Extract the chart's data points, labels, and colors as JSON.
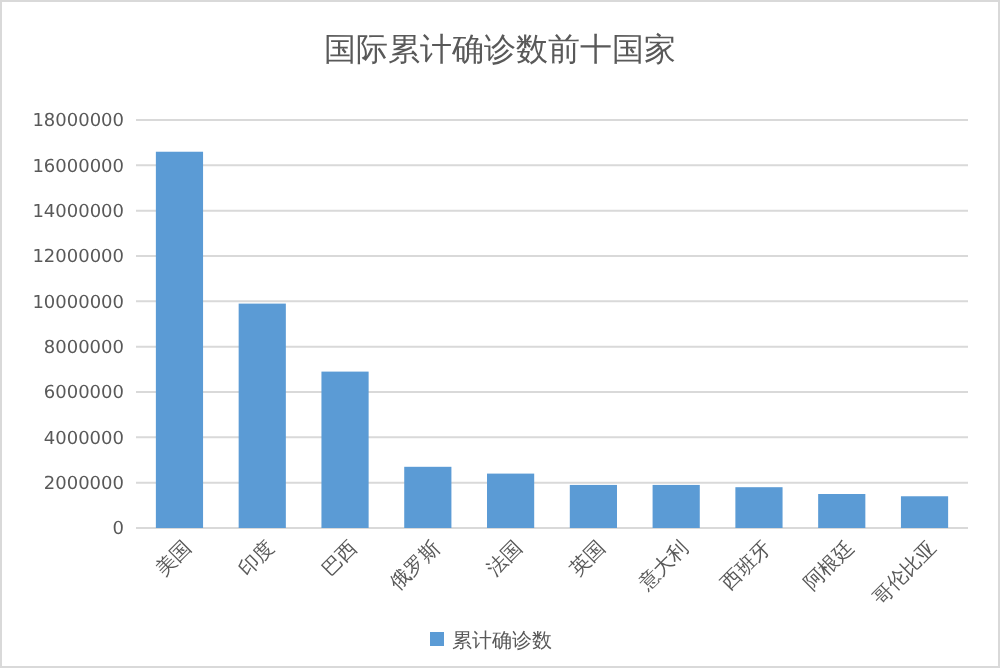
{
  "chart_data": {
    "type": "bar",
    "title": "国际累计确诊数前十国家",
    "categories": [
      "美国",
      "印度",
      "巴西",
      "俄罗斯",
      "法国",
      "英国",
      "意大利",
      "西班牙",
      "阿根廷",
      "哥伦比亚"
    ],
    "series": [
      {
        "name": "累计确诊数",
        "color": "#5b9bd5",
        "values": [
          16600000,
          9900000,
          6900000,
          2700000,
          2400000,
          1900000,
          1900000,
          1800000,
          1500000,
          1400000
        ]
      }
    ],
    "ylim": [
      0,
      18000000
    ],
    "yticks": [
      0,
      2000000,
      4000000,
      6000000,
      8000000,
      10000000,
      12000000,
      14000000,
      16000000,
      18000000
    ],
    "grid": "y",
    "legend": "bottom"
  }
}
